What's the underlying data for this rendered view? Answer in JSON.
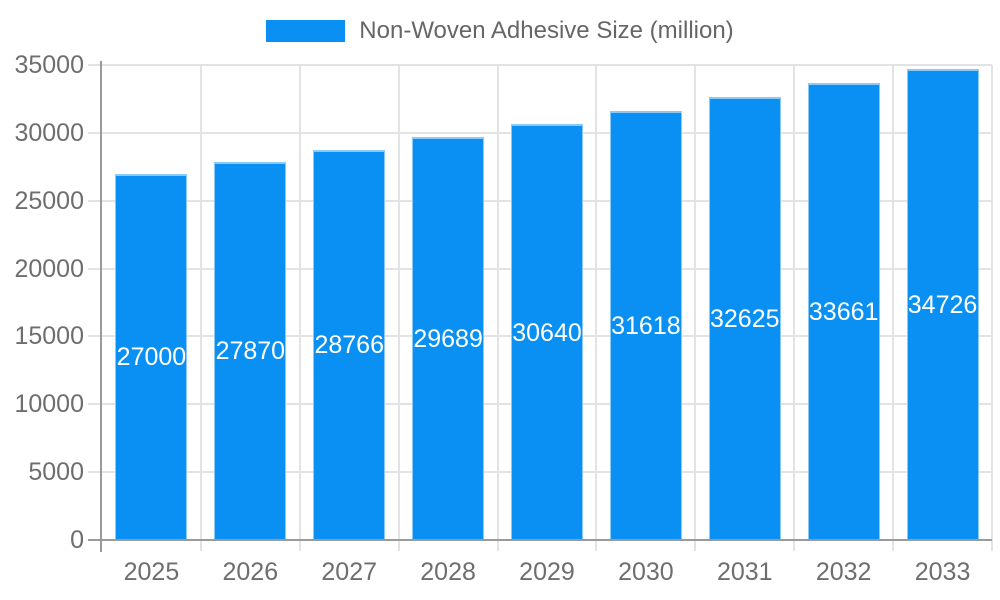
{
  "chart_data": {
    "type": "bar",
    "title": "",
    "legend": {
      "label": "Non-Woven Adhesive Size (million)",
      "position": "top"
    },
    "categories": [
      "2025",
      "2026",
      "2027",
      "2028",
      "2029",
      "2030",
      "2031",
      "2032",
      "2033"
    ],
    "values": [
      27000,
      27870,
      28766,
      29689,
      30640,
      31618,
      32625,
      33661,
      34726
    ],
    "value_labels_shown": true,
    "xlabel": "",
    "ylabel": "",
    "ylim": [
      0,
      35000
    ],
    "ytick_step": 5000,
    "yticks": [
      0,
      5000,
      10000,
      15000,
      20000,
      25000,
      30000,
      35000
    ],
    "grid": true,
    "legend_visible": true,
    "colors": {
      "bar_fill": "#0a90f2",
      "bar_border": "#8bc9f6",
      "grid_line": "#e3e3e3",
      "axis_line": "#9a9a9a",
      "axis_label": "#6e6e6e",
      "legend_text": "#666666",
      "value_label": "#ffffff",
      "background": "#ffffff"
    }
  }
}
